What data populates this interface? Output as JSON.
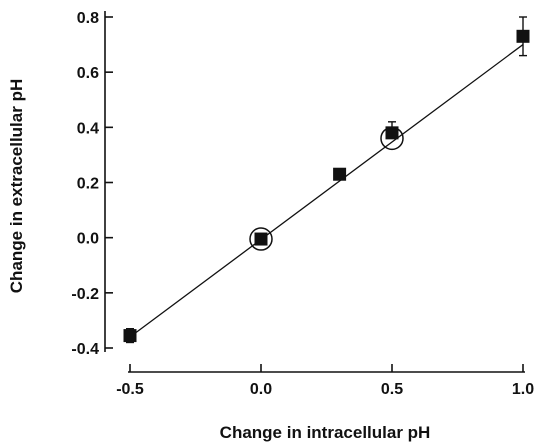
{
  "chart_data": {
    "type": "scatter",
    "title": "",
    "xlabel": "Change in intracellular pH",
    "ylabel": "Change in extracellular pH",
    "xlim": [
      -0.5,
      1.0
    ],
    "ylim": [
      -0.4,
      0.8
    ],
    "x_ticks": [
      {
        "value": -0.5,
        "label": "-0.5"
      },
      {
        "value": 0.0,
        "label": "0.0"
      },
      {
        "value": 0.5,
        "label": "0.5"
      },
      {
        "value": 1.0,
        "label": "1.0"
      }
    ],
    "y_ticks": [
      {
        "value": -0.4,
        "label": "-0.4"
      },
      {
        "value": -0.2,
        "label": "-0.2"
      },
      {
        "value": 0.0,
        "label": "0.0"
      },
      {
        "value": 0.2,
        "label": "0.2"
      },
      {
        "value": 0.4,
        "label": "0.4"
      },
      {
        "value": 0.6,
        "label": "0.6"
      },
      {
        "value": 0.8,
        "label": "0.8"
      }
    ],
    "series": [
      {
        "marker": "filled-square",
        "points": [
          {
            "x": -0.5,
            "y": -0.355,
            "err_low": 0.025,
            "err_high": 0.025
          },
          {
            "x": 0.0,
            "y": -0.005,
            "err_low": 0.0,
            "err_high": 0.0
          },
          {
            "x": 0.3,
            "y": 0.23,
            "err_low": 0.0,
            "err_high": 0.0
          },
          {
            "x": 0.5,
            "y": 0.38,
            "err_low": 0.0,
            "err_high": 0.04
          },
          {
            "x": 1.0,
            "y": 0.73,
            "err_low": 0.07,
            "err_high": 0.07
          }
        ]
      },
      {
        "marker": "open-circle",
        "points": [
          {
            "x": 0.0,
            "y": -0.005
          },
          {
            "x": 0.5,
            "y": 0.36
          }
        ]
      }
    ],
    "fit_line": {
      "x_start": -0.5,
      "y_start": -0.36,
      "x_end": 1.0,
      "y_end": 0.7
    },
    "grid": false,
    "legend": "none",
    "colors": {
      "ink": "#111111",
      "background": "#ffffff"
    }
  }
}
